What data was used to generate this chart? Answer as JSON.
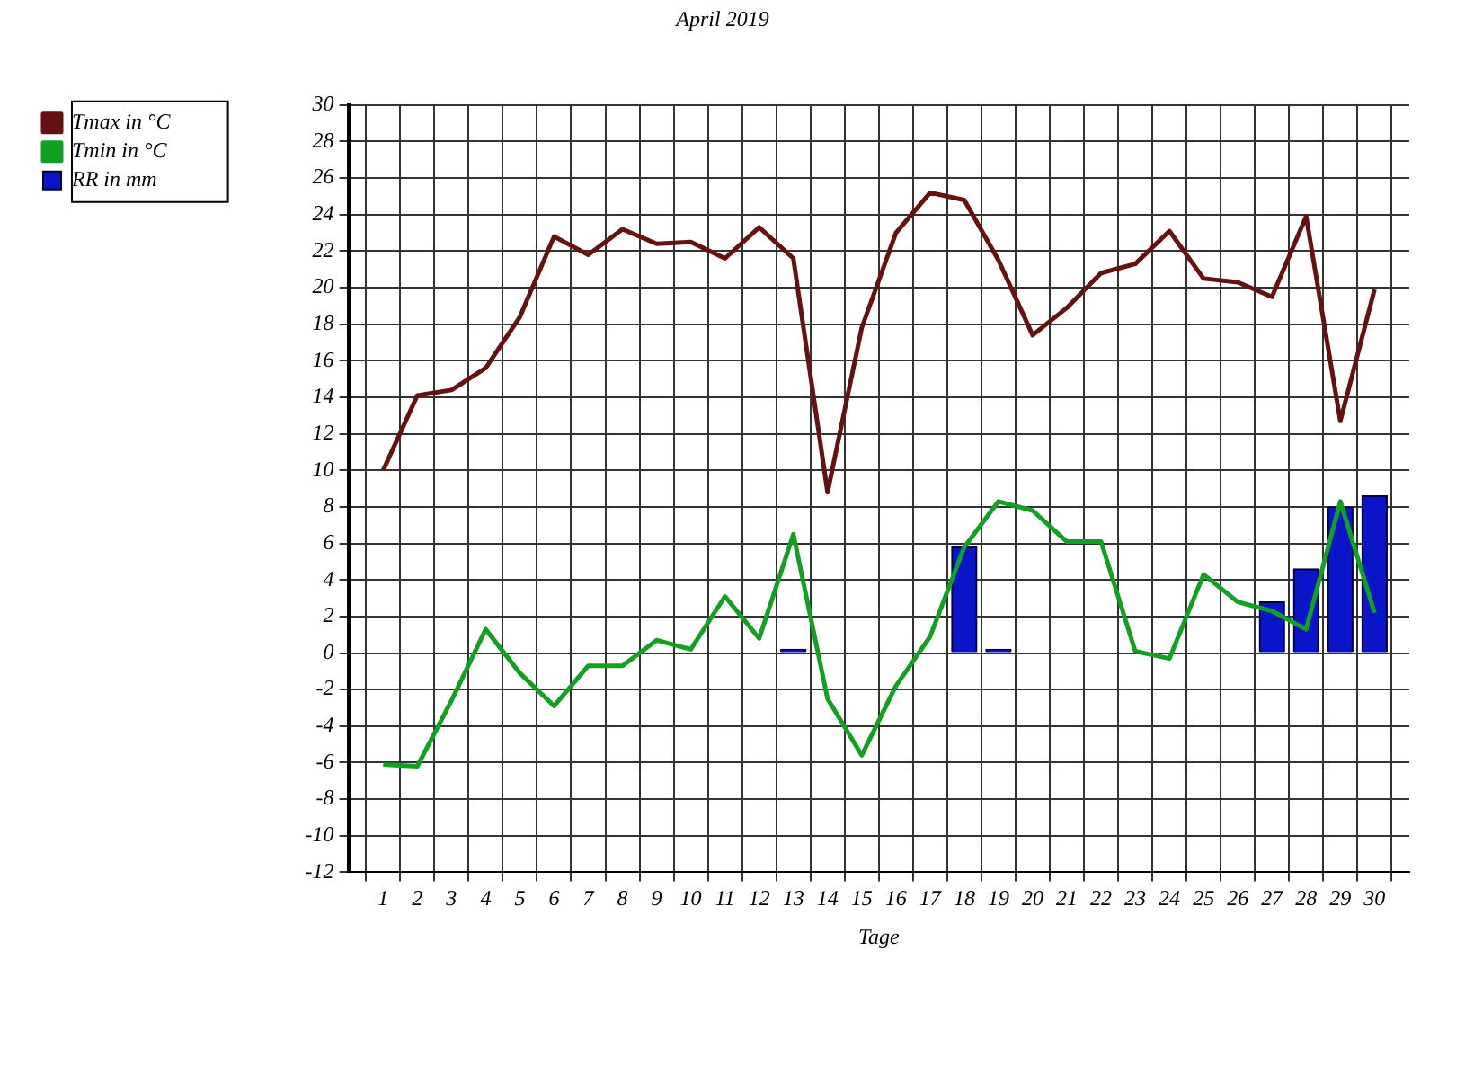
{
  "chart_data": {
    "type": "line",
    "title": "April 2019",
    "xlabel": "Tage",
    "x": [
      1,
      2,
      3,
      4,
      5,
      6,
      7,
      8,
      9,
      10,
      11,
      12,
      13,
      14,
      15,
      16,
      17,
      18,
      19,
      20,
      21,
      22,
      23,
      24,
      25,
      26,
      27,
      28,
      29,
      30
    ],
    "xlim": [
      0.5,
      30.5
    ],
    "xticks": [
      1,
      2,
      3,
      4,
      5,
      6,
      7,
      8,
      9,
      10,
      11,
      12,
      13,
      14,
      15,
      16,
      17,
      18,
      19,
      20,
      21,
      22,
      23,
      24,
      25,
      26,
      27,
      28,
      29,
      30
    ],
    "ylim": [
      -12,
      30
    ],
    "yticks": [
      -12,
      -10,
      -8,
      -6,
      -4,
      -2,
      0,
      2,
      4,
      6,
      8,
      10,
      12,
      14,
      16,
      18,
      20,
      22,
      24,
      26,
      28,
      30
    ],
    "grid": true,
    "legend": "top left",
    "marker": "none",
    "series": [
      {
        "name": "Tmax in °C",
        "color": "#661111",
        "values": [
          10,
          14.1,
          14.4,
          15.6,
          18.4,
          22.8,
          21.8,
          23.2,
          22.4,
          22.5,
          21.6,
          23.3,
          21.6,
          8.8,
          17.8,
          23.0,
          25.2,
          24.8,
          21.5,
          17.4,
          18.9,
          20.8,
          21.3,
          23.1,
          20.5,
          20.3,
          19.5,
          23.9,
          12.7,
          19.9
        ]
      },
      {
        "name": "Tmin in °C",
        "color": "#11a022",
        "values": [
          -6.1,
          -6.2,
          -2.6,
          1.3,
          -1.1,
          -2.9,
          -0.7,
          -0.7,
          0.7,
          0.2,
          3.1,
          0.8,
          6.5,
          -2.5,
          -5.6,
          -1.8,
          0.9,
          5.8,
          8.3,
          7.8,
          6.1,
          6.1,
          0.1,
          -0.3,
          4.3,
          2.8,
          2.3,
          1.3,
          8.3,
          2.2
        ]
      },
      {
        "name": "RR in mm",
        "type": "bar",
        "color": "#0a14c8",
        "values": [
          null,
          null,
          null,
          null,
          null,
          null,
          null,
          null,
          null,
          null,
          null,
          null,
          0.2,
          null,
          null,
          null,
          null,
          5.8,
          0.2,
          null,
          null,
          null,
          null,
          null,
          null,
          null,
          2.8,
          4.6,
          8.0,
          8.6
        ]
      }
    ]
  }
}
